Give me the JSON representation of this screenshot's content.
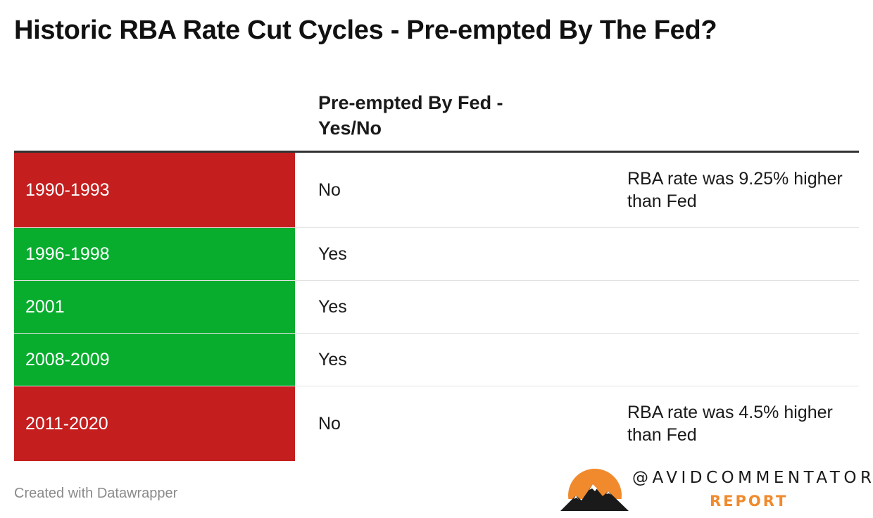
{
  "title": "Historic RBA Rate Cut Cycles - Pre-empted By The Fed?",
  "chart_data": {
    "type": "table",
    "columns": [
      "",
      "Pre-empted By Fed - Yes/No",
      ""
    ],
    "rows": [
      {
        "period": "1990-1993",
        "preempted": "No",
        "note": "RBA rate was 9.25% higher than Fed",
        "color": "#c51e1e"
      },
      {
        "period": "1996-1998",
        "preempted": "Yes",
        "note": "",
        "color": "#08ad2e"
      },
      {
        "period": "2001",
        "preempted": "Yes",
        "note": "",
        "color": "#08ad2e"
      },
      {
        "period": "2008-2009",
        "preempted": "Yes",
        "note": "",
        "color": "#08ad2e"
      },
      {
        "period": "2011-2020",
        "preempted": "No",
        "note": "RBA rate was 4.5% higher than Fed",
        "color": "#c51e1e"
      }
    ]
  },
  "footer": {
    "credit": "Created with Datawrapper",
    "brand_handle": "@AVIDCOMMENTATOR",
    "brand_sub": "REPORT",
    "brand_icon": "mountain-sun-logo",
    "brand_color": "#f08a2c"
  }
}
